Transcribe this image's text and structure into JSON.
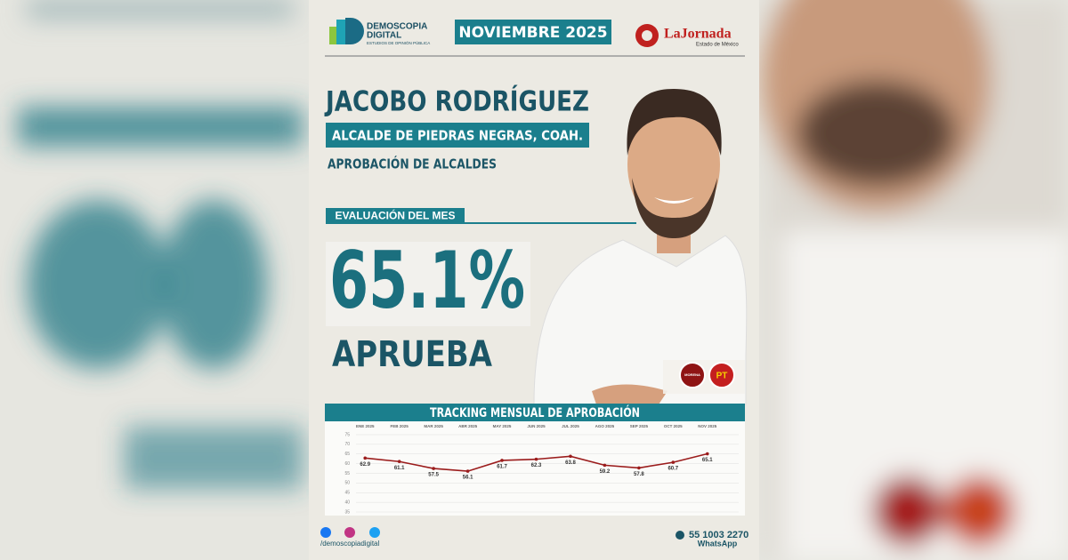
{
  "header": {
    "logo_name": "DEMOSCOPIA",
    "logo_name2": "DIGITAL",
    "logo_tagline": "ESTUDIOS DE OPINIÓN PÚBLICA",
    "date": "NOVIEMBRE 2025",
    "partner": "LaJornada",
    "partner_sub": "Estado de México"
  },
  "person": {
    "name": "JACOBO RODRÍGUEZ",
    "role": "ALCALDE DE PIEDRAS NEGRAS, COAH.",
    "survey": "APROBACIÓN DE ALCALDES"
  },
  "evaluation": {
    "label": "EVALUACIÓN DEL MES",
    "value": "65.1%",
    "verdict": "APRUEBA"
  },
  "parties": [
    "MORENA",
    "PT"
  ],
  "chart_data": {
    "type": "line",
    "title": "TRACKING MENSUAL DE APROBACIÓN",
    "categories": [
      "ENE 2025",
      "FEB 2025",
      "MAR 2025",
      "ABR 2025",
      "MAY 2025",
      "JUN 2025",
      "JUL 2025",
      "AGO 2025",
      "SEP 2025",
      "OCT 2025",
      "NOV 2025"
    ],
    "values": [
      62.9,
      61.1,
      57.5,
      56.1,
      61.7,
      62.3,
      63.8,
      59.2,
      57.8,
      60.7,
      65.1
    ],
    "color": "#9b1c1c",
    "ylim": [
      35,
      75
    ],
    "yticks": [
      35,
      40,
      45,
      50,
      55,
      60,
      65,
      70,
      75
    ],
    "grid": true
  },
  "footer": {
    "handle": "/demoscopiadigital",
    "phone": "55 1003 2270",
    "phone_label": "WhatsApp"
  }
}
